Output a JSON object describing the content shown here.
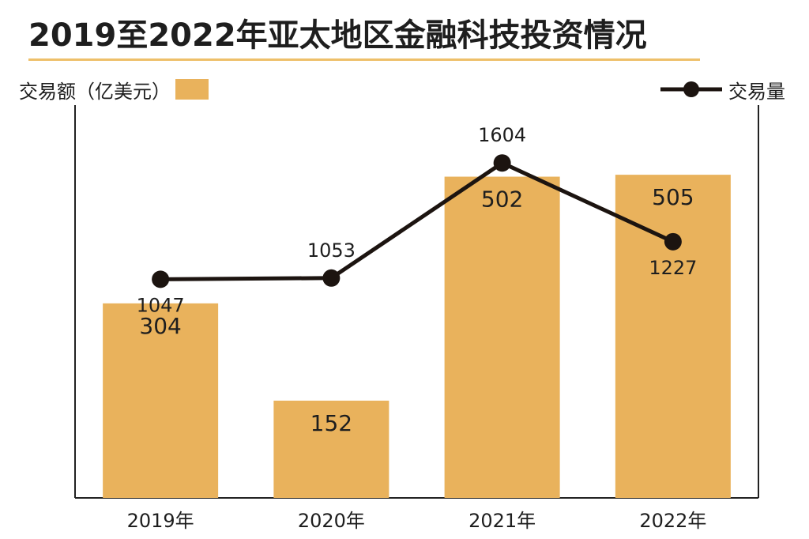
{
  "chart_data": {
    "type": "bar",
    "title": "2019至2022年亚太地区金融科技投资情况",
    "categories": [
      "2019年",
      "2020年",
      "2021年",
      "2022年"
    ],
    "series": [
      {
        "name": "交易额（亿美元）",
        "type": "bar",
        "values": [
          304,
          152,
          502,
          505
        ],
        "color": "#e9b25c"
      },
      {
        "name": "交易量",
        "type": "line",
        "values": [
          1047,
          1053,
          1604,
          1227
        ],
        "color": "#1c1410"
      }
    ],
    "ylim_bar": [
      0,
      620
    ],
    "ylim_line": [
      0,
      1900
    ],
    "grid": false,
    "legend": [
      "top-left",
      "top-right"
    ]
  },
  "legend": {
    "bar_label": "交易额（亿美元）",
    "line_label": "交易量"
  },
  "colors": {
    "bar": "#e9b25c",
    "line": "#1c1410",
    "title_rule": "#eec06a",
    "text": "#1e1e1e"
  }
}
